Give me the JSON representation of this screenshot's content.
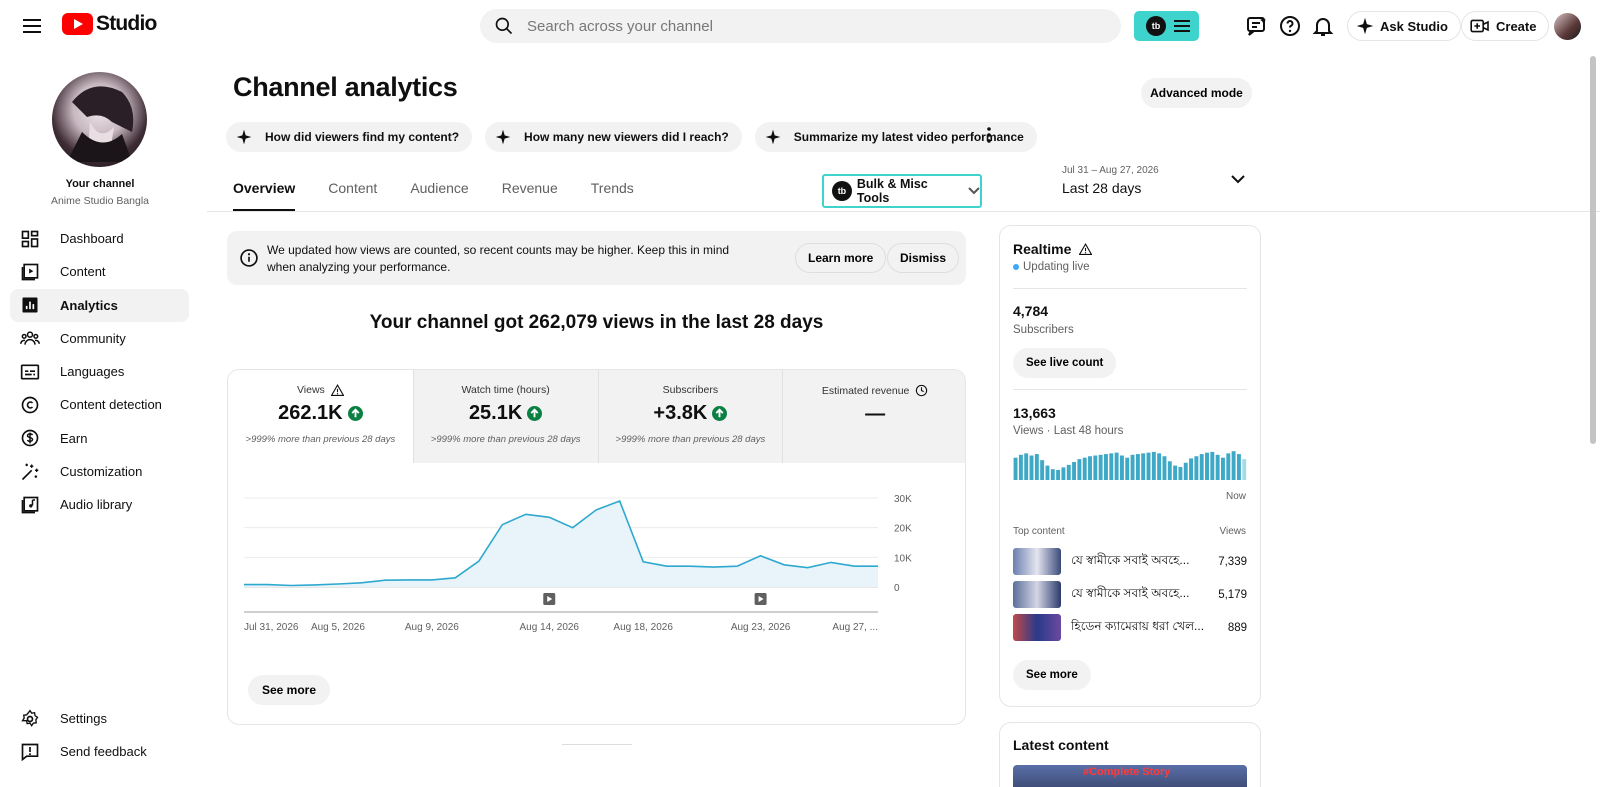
{
  "header": {
    "logo_text": "Studio",
    "search_placeholder": "Search across your channel",
    "tb_badge": "tb",
    "ask_studio": "Ask Studio",
    "create": "Create"
  },
  "sidebar": {
    "your_channel": "Your channel",
    "channel_name": "Anime Studio Bangla",
    "items": [
      {
        "label": "Dashboard",
        "icon": "dashboard-icon"
      },
      {
        "label": "Content",
        "icon": "content-icon"
      },
      {
        "label": "Analytics",
        "icon": "analytics-icon",
        "active": true
      },
      {
        "label": "Community",
        "icon": "community-icon"
      },
      {
        "label": "Languages",
        "icon": "languages-icon"
      },
      {
        "label": "Content detection",
        "icon": "copyright-icon"
      },
      {
        "label": "Earn",
        "icon": "dollar-icon"
      },
      {
        "label": "Customization",
        "icon": "magic-wand-icon"
      },
      {
        "label": "Audio library",
        "icon": "audio-library-icon"
      }
    ],
    "bottom": [
      {
        "label": "Settings",
        "icon": "gear-icon"
      },
      {
        "label": "Send feedback",
        "icon": "feedback-icon"
      }
    ]
  },
  "main": {
    "title": "Channel analytics",
    "advanced_mode": "Advanced mode",
    "chips": [
      "How did viewers find my content?",
      "How many new viewers did I reach?",
      "Summarize my latest video performance"
    ],
    "tabs": [
      "Overview",
      "Content",
      "Audience",
      "Revenue",
      "Trends"
    ],
    "bulk_tools": "Bulk & Misc Tools",
    "date_range": "Jul 31 – Aug 27, 2026",
    "date_label": "Last 28 days",
    "notice": {
      "text": "We updated how views are counted, so recent counts may be higher. Keep this in mind when analyzing your performance.",
      "learn_more": "Learn more",
      "dismiss": "Dismiss"
    },
    "headline": "Your channel got 262,079 views in the last 28 days",
    "metrics": [
      {
        "label": "Views",
        "value": "262.1K",
        "sub": ">999% more than previous 28 days",
        "icon": "warning-icon",
        "up": true
      },
      {
        "label": "Watch time (hours)",
        "value": "25.1K",
        "sub": ">999% more than previous 28 days",
        "up": true
      },
      {
        "label": "Subscribers",
        "value": "+3.8K",
        "sub": ">999% more than previous 28 days",
        "up": true
      },
      {
        "label": "Estimated revenue",
        "value": "—",
        "sub": "",
        "icon": "clock-icon",
        "up": false
      }
    ],
    "see_more": "See more"
  },
  "chart_data": {
    "type": "area",
    "title": "",
    "xlabel": "",
    "ylabel": "",
    "ylim": [
      0,
      30000
    ],
    "y_ticks": [
      0,
      10000,
      20000,
      30000
    ],
    "y_tick_labels": [
      "0",
      "10K",
      "20K",
      "30K"
    ],
    "x_tick_labels": [
      "Jul 31, 2026",
      "Aug 5, 2026",
      "Aug 9, 2026",
      "Aug 14, 2026",
      "Aug 18, 2026",
      "Aug 23, 2026",
      "Aug 27, ..."
    ],
    "x_tick_days": [
      0,
      4,
      8,
      13,
      17,
      22,
      26
    ],
    "video_markers_days": [
      13,
      22
    ],
    "series": [
      {
        "values": [
          800,
          800,
          500,
          700,
          1000,
          1400,
          2300,
          2400,
          2400,
          3100,
          8700,
          21000,
          24500,
          23500,
          20000,
          26000,
          29000,
          8500,
          7000,
          7000,
          6700,
          7000,
          10500,
          7500,
          6500,
          8300,
          7000,
          7000
        ]
      }
    ],
    "grid": true,
    "color": "#2ea8ce"
  },
  "realtime": {
    "title": "Realtime",
    "live": "Updating live",
    "subscribers_value": "4,784",
    "subscribers_label": "Subscribers",
    "see_live_count": "See live count",
    "views_value": "13,663",
    "views_label": "Views · Last 48 hours",
    "now": "Now",
    "bars": [
      62,
      70,
      74,
      68,
      72,
      55,
      40,
      30,
      28,
      35,
      42,
      50,
      58,
      62,
      66,
      68,
      70,
      72,
      74,
      76,
      68,
      62,
      70,
      72,
      74,
      76,
      78,
      74,
      66,
      52,
      40,
      36,
      48,
      60,
      66,
      72,
      76,
      78,
      70,
      62,
      74,
      80,
      72,
      58
    ],
    "top_content": "Top content",
    "views_col": "Views",
    "top": [
      {
        "title": "যে স্বামীকে সবাই অবহে...",
        "views": "7,339"
      },
      {
        "title": "যে স্বামীকে সবাই অবহে...",
        "views": "5,179"
      },
      {
        "title": "হিডেন ক্যামেরায় ধরা খেল...",
        "views": "889"
      }
    ],
    "see_more": "See more"
  },
  "latest": {
    "title": "Latest content",
    "thumb_text": "#Complete Story"
  }
}
